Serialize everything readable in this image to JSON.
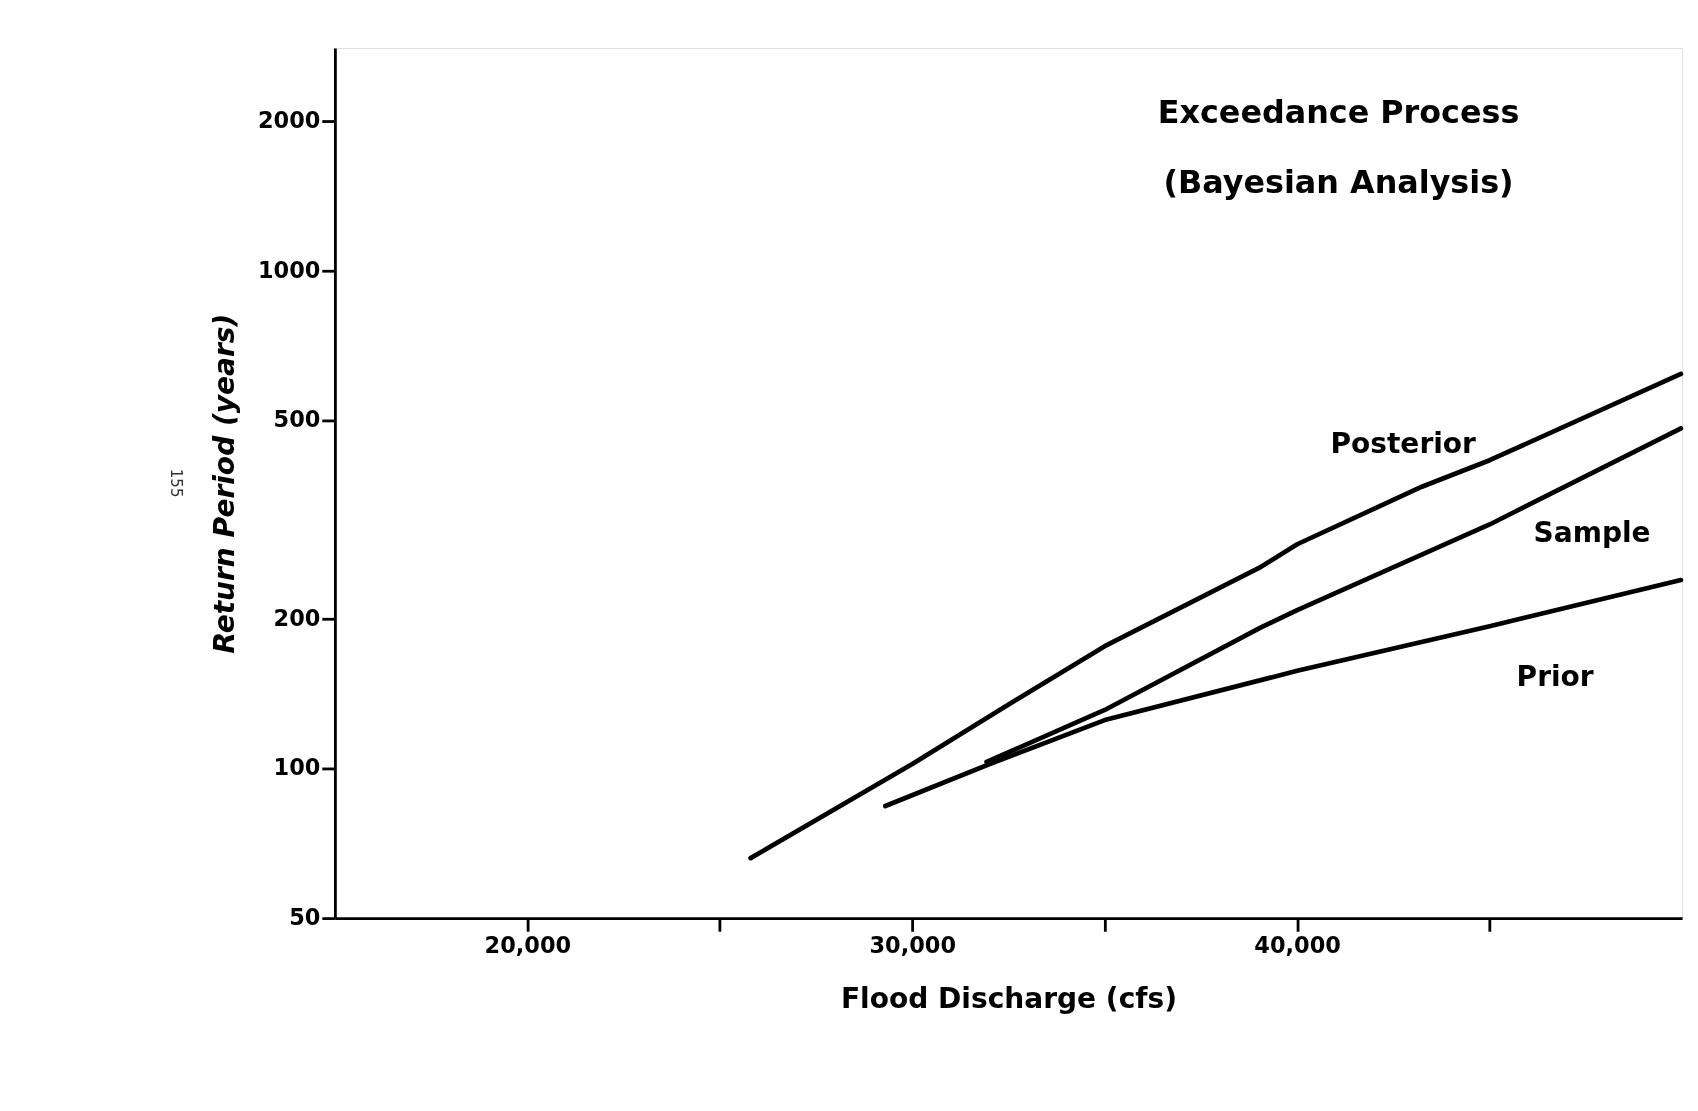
{
  "chart_data": {
    "type": "line",
    "title": "Exceedance Process",
    "subtitle": "(Bayesian Analysis)",
    "xlabel": "Flood Discharge (cfs)",
    "ylabel": "Return Period (years)",
    "annotations": [
      "155"
    ],
    "log": "y",
    "grid": false,
    "legend": false,
    "marker": "none",
    "line_style": "solid",
    "xlim": [
      15000,
      50000
    ],
    "ylim": [
      50,
      2800
    ],
    "xticks": [
      {
        "value": 20000,
        "label": "20,000"
      },
      {
        "value": 25000,
        "label": null
      },
      {
        "value": 30000,
        "label": "30,000"
      },
      {
        "value": 35000,
        "label": null
      },
      {
        "value": 40000,
        "label": "40,000"
      },
      {
        "value": 45000,
        "label": null
      }
    ],
    "yticks": [
      50,
      100,
      200,
      500,
      1000,
      2000
    ],
    "series": [
      {
        "name": "Posterior",
        "color": "#000000",
        "x": [
          25800,
          30000,
          32270,
          35000,
          39060,
          40000,
          43240,
          45000,
          49970
        ],
        "values": [
          66,
          102,
          131,
          176,
          254,
          282,
          368,
          416,
          620
        ]
      },
      {
        "name": "Sample",
        "color": "#000000",
        "x": [
          31930,
          35000,
          39060,
          40000,
          45000,
          49970
        ],
        "values": [
          103,
          131,
          192,
          208,
          309,
          482
        ]
      },
      {
        "name": "Prior",
        "color": "#000000",
        "x": [
          29300,
          32010,
          35000,
          40000,
          45000,
          49970
        ],
        "values": [
          84,
          102,
          125,
          157,
          193,
          239
        ]
      }
    ]
  }
}
